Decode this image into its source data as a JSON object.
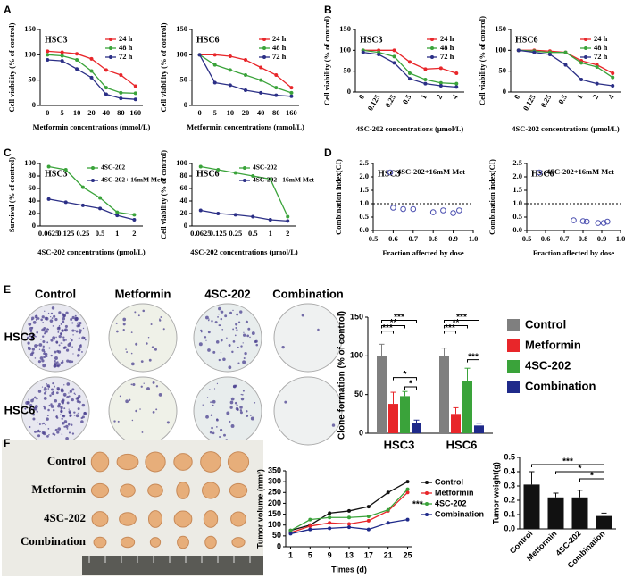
{
  "chart_data": [
    {
      "type": "line",
      "panel_label": "A",
      "title": "HSC3",
      "categories": [
        "0",
        "5",
        "10",
        "20",
        "40",
        "80",
        "160"
      ],
      "xlabel": "Metformin concentrations (mmol/L)",
      "ylabel": "Cell viability (% of control)",
      "ylim": [
        0,
        150
      ],
      "yticks": [
        0,
        50,
        100,
        150
      ],
      "series": [
        {
          "name": "24 h",
          "color": "#e8262a",
          "values": [
            107,
            105,
            102,
            92,
            70,
            60,
            38
          ]
        },
        {
          "name": "48 h",
          "color": "#3aa33a",
          "values": [
            100,
            98,
            90,
            68,
            35,
            25,
            24
          ]
        },
        {
          "name": "72 h",
          "color": "#2b2f86",
          "values": [
            90,
            88,
            72,
            55,
            22,
            14,
            12
          ]
        }
      ]
    },
    {
      "type": "line",
      "title": "HSC6",
      "categories": [
        "0",
        "5",
        "10",
        "20",
        "40",
        "80",
        "160"
      ],
      "xlabel": "Metformin concentrations (mmol/L)",
      "ylabel": "Cell viability (% of control)",
      "ylim": [
        0,
        150
      ],
      "yticks": [
        0,
        50,
        100,
        150
      ],
      "series": [
        {
          "name": "24 h",
          "color": "#e8262a",
          "values": [
            100,
            100,
            97,
            90,
            75,
            60,
            35
          ]
        },
        {
          "name": "48 h",
          "color": "#3aa33a",
          "values": [
            100,
            80,
            70,
            60,
            50,
            35,
            25
          ]
        },
        {
          "name": "72 h",
          "color": "#2b2f86",
          "values": [
            100,
            45,
            40,
            30,
            25,
            20,
            18
          ]
        }
      ]
    },
    {
      "type": "line",
      "panel_label": "B",
      "title": "HSC3",
      "categories": [
        "0",
        "0.125",
        "0.25",
        "0.5",
        "1",
        "2",
        "4"
      ],
      "xlabel": "4SC-202 concentrations (μmol/L)",
      "ylabel": "Cell viability (% of control)",
      "ylim": [
        0,
        150
      ],
      "yticks": [
        0,
        50,
        100,
        150
      ],
      "series": [
        {
          "name": "24 h",
          "color": "#e8262a",
          "values": [
            100,
            100,
            100,
            72,
            55,
            57,
            45
          ]
        },
        {
          "name": "48 h",
          "color": "#3aa33a",
          "values": [
            100,
            95,
            85,
            45,
            30,
            22,
            20
          ]
        },
        {
          "name": "72 h",
          "color": "#2b2f86",
          "values": [
            95,
            90,
            70,
            32,
            20,
            15,
            12
          ]
        }
      ]
    },
    {
      "type": "line",
      "title": "HSC6",
      "categories": [
        "0",
        "0.125",
        "0.25",
        "0.5",
        "1",
        "2",
        "4"
      ],
      "xlabel": "4SC-202 concentrations (μmol/L)",
      "ylabel": "Cell viability (% of control)",
      "ylim": [
        0,
        150
      ],
      "yticks": [
        0,
        50,
        100,
        150
      ],
      "series": [
        {
          "name": "24 h",
          "color": "#e8262a",
          "values": [
            100,
            100,
            98,
            95,
            75,
            65,
            45
          ]
        },
        {
          "name": "48 h",
          "color": "#3aa33a",
          "values": [
            100,
            98,
            95,
            95,
            70,
            60,
            35
          ]
        },
        {
          "name": "72 h",
          "color": "#2b2f86",
          "values": [
            100,
            95,
            90,
            65,
            30,
            20,
            15
          ]
        }
      ]
    },
    {
      "type": "line",
      "panel_label": "C",
      "title": "HSC3",
      "categories": [
        "0.0625",
        "0.125",
        "0.25",
        "0.5",
        "1",
        "2"
      ],
      "xlabel": "4SC-202 concentrations (μmol/L)",
      "ylabel": "Survival (% of control)",
      "ylim": [
        0,
        100
      ],
      "yticks": [
        0,
        20,
        40,
        60,
        80,
        100
      ],
      "series": [
        {
          "name": "4SC-202",
          "color": "#3aa33a",
          "values": [
            95,
            90,
            62,
            45,
            22,
            18
          ]
        },
        {
          "name": "4SC-202+ 16mM Met",
          "color": "#2b2f86",
          "values": [
            43,
            38,
            33,
            28,
            17,
            10
          ]
        }
      ]
    },
    {
      "type": "line",
      "title": "HSC6",
      "categories": [
        "0.0625",
        "0.125",
        "0.25",
        "0.5",
        "1",
        "2"
      ],
      "xlabel": "4SC-202 concentrations (μmol/L)",
      "ylabel": "Cell viability (% of control)",
      "ylim": [
        0,
        100
      ],
      "yticks": [
        0,
        20,
        40,
        60,
        80,
        100
      ],
      "series": [
        {
          "name": "4SC-202",
          "color": "#3aa33a",
          "values": [
            95,
            90,
            85,
            80,
            75,
            15
          ]
        },
        {
          "name": "4SC-202+ 16mM Met",
          "color": "#2b2f86",
          "values": [
            25,
            20,
            18,
            15,
            10,
            8
          ]
        }
      ]
    },
    {
      "type": "scatter",
      "panel_label": "D",
      "title": "HSC3",
      "xlabel": "Fraction affected by dose",
      "ylabel": "Combination index(CI)",
      "xlim": [
        0.5,
        1.0
      ],
      "xticks": [
        0.5,
        0.6,
        0.7,
        0.8,
        0.9,
        {
          "value": 1,
          "label": "1.0"
        }
      ],
      "ylim": [
        0,
        2.5
      ],
      "yticks": [
        {
          "value": 0,
          "label": "0.0"
        },
        0.5,
        {
          "value": 1,
          "label": "1.0"
        },
        1.5,
        {
          "value": 2,
          "label": "2.0"
        },
        2.5
      ],
      "hline": 1.0,
      "series": [
        {
          "name": "4SC-202+16mM Met",
          "color": "#4b4fb0",
          "x": [
            0.6,
            0.65,
            0.7,
            0.8,
            0.85,
            0.9,
            0.93
          ],
          "y": [
            0.85,
            0.8,
            0.8,
            0.68,
            0.75,
            0.65,
            0.75
          ]
        }
      ]
    },
    {
      "type": "scatter",
      "title": "HSC6",
      "xlabel": "Fraction affected by dose",
      "ylabel": "Combination index(CI)",
      "xlim": [
        0.5,
        1.0
      ],
      "xticks": [
        0.5,
        0.6,
        0.7,
        0.8,
        0.9,
        {
          "value": 1,
          "label": "1.0"
        }
      ],
      "ylim": [
        0,
        2.5
      ],
      "yticks": [
        {
          "value": 0,
          "label": "0.0"
        },
        0.5,
        {
          "value": 1,
          "label": "1.0"
        },
        1.5,
        {
          "value": 2,
          "label": "2.0"
        },
        2.5
      ],
      "hline": 1.0,
      "series": [
        {
          "name": "4SC-202+16mM Met",
          "color": "#4b4fb0",
          "x": [
            0.75,
            0.8,
            0.82,
            0.88,
            0.91,
            0.93
          ],
          "y": [
            0.38,
            0.35,
            0.33,
            0.28,
            0.28,
            0.33
          ]
        }
      ]
    },
    {
      "type": "bar",
      "panel_label": "E",
      "image_labels": {
        "columns": [
          "Control",
          "Metformin",
          "4SC-202",
          "Combination"
        ],
        "rows": [
          "HSC3",
          "HSC6"
        ]
      },
      "categories": [
        "HSC3",
        "HSC6"
      ],
      "ylabel": "Clone formation (% of control)",
      "ylim": [
        0,
        150
      ],
      "yticks": [
        0,
        50,
        100,
        150
      ],
      "series": [
        {
          "name": "Control",
          "color": "#7f7f7f",
          "values": [
            100,
            100
          ],
          "errors": [
            15,
            10
          ]
        },
        {
          "name": "Metformin",
          "color": "#e8262a",
          "values": [
            38,
            25
          ],
          "errors": [
            15,
            8
          ]
        },
        {
          "name": "4SC-202",
          "color": "#3aa33a",
          "values": [
            48,
            67
          ],
          "errors": [
            6,
            17
          ]
        },
        {
          "name": "Combination",
          "color": "#1f2a8a",
          "values": [
            13,
            10
          ],
          "errors": [
            4,
            3
          ]
        }
      ],
      "annotations": [
        "***",
        "**",
        "***",
        "*",
        "*",
        "***",
        "**",
        "***",
        "***"
      ]
    },
    {
      "type": "line",
      "panel_label": "F",
      "image_labels": {
        "rows": [
          "Control",
          "Metformin",
          "4SC-202",
          "Combination"
        ]
      },
      "x": [
        1,
        5,
        9,
        13,
        17,
        21,
        25
      ],
      "xlim": [
        0,
        26
      ],
      "xticks": [
        1,
        5,
        9,
        13,
        17,
        21,
        25
      ],
      "xlabel": "Times (d)",
      "ylabel": "Tumor volume (mm³)",
      "ylim": [
        0,
        350
      ],
      "yticks": [
        0,
        50,
        100,
        150,
        200,
        250,
        300,
        350
      ],
      "series": [
        {
          "name": "Control",
          "color": "#111111",
          "values": [
            75,
            100,
            155,
            165,
            185,
            250,
            300
          ]
        },
        {
          "name": "Metformin",
          "color": "#e8262a",
          "values": [
            65,
            95,
            110,
            105,
            120,
            165,
            250
          ]
        },
        {
          "name": "4SC-202",
          "color": "#3aa33a",
          "values": [
            75,
            125,
            135,
            135,
            140,
            170,
            265
          ]
        },
        {
          "name": "Combination",
          "color": "#1f2a8a",
          "values": [
            60,
            80,
            85,
            90,
            80,
            110,
            125
          ]
        }
      ],
      "annotations": [
        "***"
      ]
    },
    {
      "type": "bar",
      "categories": [
        "Control",
        "Metformin",
        "4SC-202",
        "Combination"
      ],
      "ylabel": "Tumor weight(g)",
      "ylim": [
        0,
        0.5
      ],
      "yticks": [
        {
          "value": 0,
          "label": "0.0"
        },
        0.1,
        0.2,
        0.3,
        0.4,
        0.5
      ],
      "values": [
        0.31,
        0.22,
        0.22,
        0.09
      ],
      "errors": [
        0.09,
        0.03,
        0.05,
        0.02
      ],
      "color": "#111111",
      "annotations": [
        "***",
        "*",
        "*"
      ]
    }
  ]
}
